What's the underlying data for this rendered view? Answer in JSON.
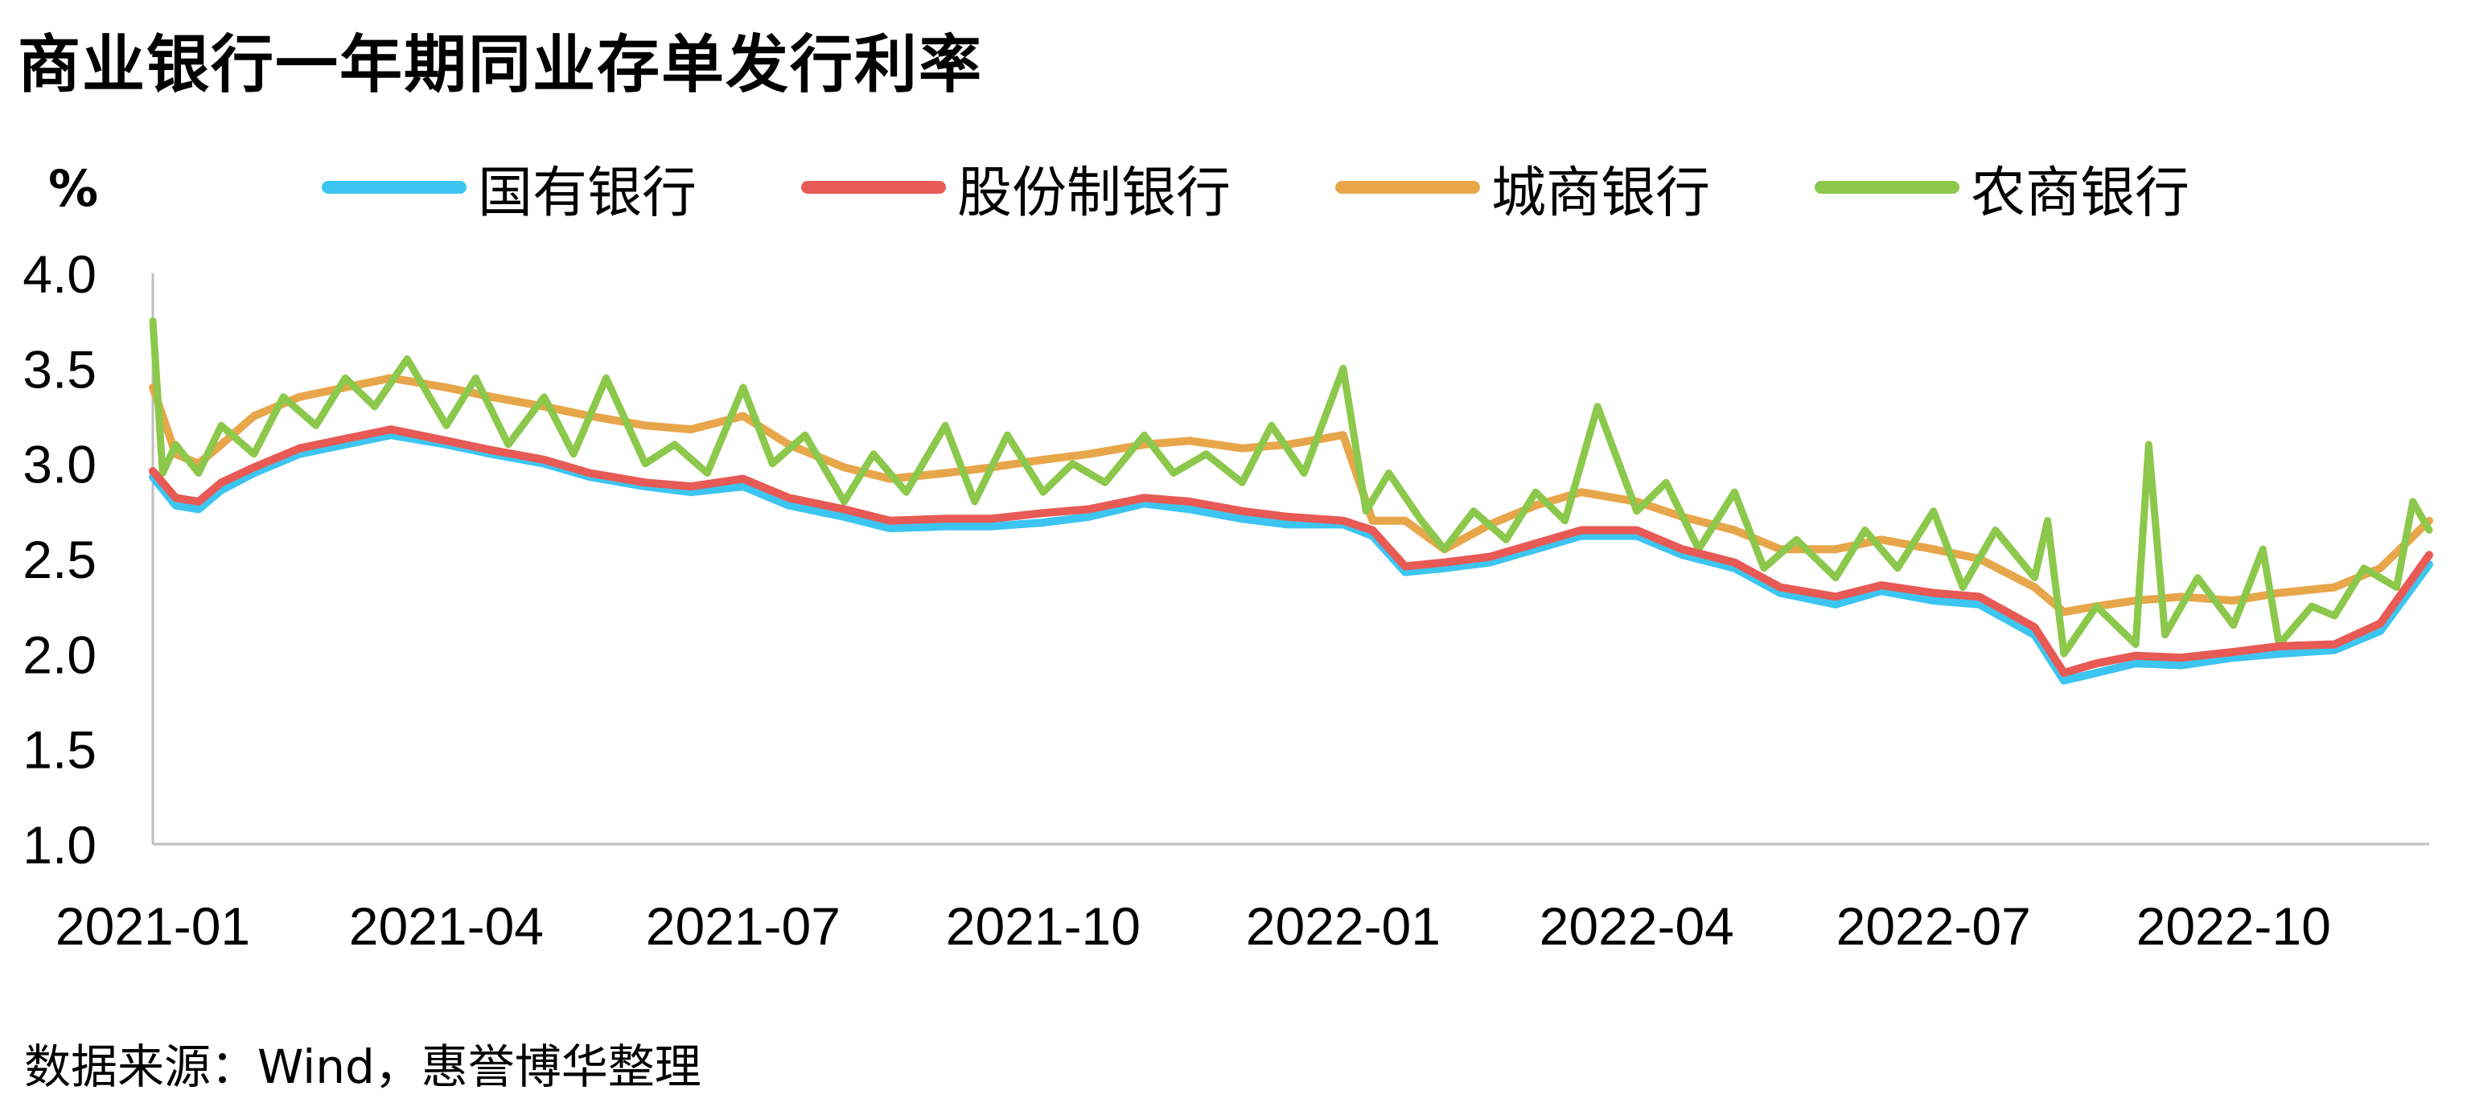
{
  "chart_data": {
    "type": "line",
    "title": "商业银行一年期同业存单发行利率",
    "unit_label": "%",
    "source": "数据来源：Wind，惠誉博华整理",
    "y_ticks": [
      "4.0",
      "3.5",
      "3.0",
      "2.5",
      "2.0",
      "1.5",
      "1.0"
    ],
    "x_ticks": [
      "2021-01",
      "2021-04",
      "2021-07",
      "2021-10",
      "2022-01",
      "2022-04",
      "2022-07",
      "2022-10"
    ],
    "ylim": [
      1.0,
      4.0
    ],
    "xlim": [
      "2021-01-01",
      "2022-11-30"
    ],
    "grid": false,
    "legend_position": "top",
    "series": [
      {
        "name": "国有银行",
        "color": "#3CC5F0",
        "values": [
          [
            "2021-01-01",
            2.93
          ],
          [
            "2021-01-08",
            2.78
          ],
          [
            "2021-01-15",
            2.76
          ],
          [
            "2021-01-22",
            2.86
          ],
          [
            "2021-02-01",
            2.95
          ],
          [
            "2021-02-15",
            3.05
          ],
          [
            "2021-03-01",
            3.1
          ],
          [
            "2021-03-15",
            3.15
          ],
          [
            "2021-04-01",
            3.1
          ],
          [
            "2021-04-15",
            3.05
          ],
          [
            "2021-05-01",
            3.0
          ],
          [
            "2021-05-15",
            2.93
          ],
          [
            "2021-06-01",
            2.88
          ],
          [
            "2021-06-15",
            2.85
          ],
          [
            "2021-07-01",
            2.88
          ],
          [
            "2021-07-15",
            2.78
          ],
          [
            "2021-08-01",
            2.72
          ],
          [
            "2021-08-15",
            2.66
          ],
          [
            "2021-09-01",
            2.67
          ],
          [
            "2021-09-15",
            2.67
          ],
          [
            "2021-10-01",
            2.69
          ],
          [
            "2021-10-15",
            2.72
          ],
          [
            "2021-11-01",
            2.79
          ],
          [
            "2021-11-15",
            2.76
          ],
          [
            "2021-12-01",
            2.71
          ],
          [
            "2021-12-15",
            2.68
          ],
          [
            "2022-01-01",
            2.68
          ],
          [
            "2022-01-10",
            2.62
          ],
          [
            "2022-01-20",
            2.43
          ],
          [
            "2022-02-01",
            2.45
          ],
          [
            "2022-02-15",
            2.48
          ],
          [
            "2022-03-01",
            2.55
          ],
          [
            "2022-03-15",
            2.62
          ],
          [
            "2022-04-01",
            2.62
          ],
          [
            "2022-04-15",
            2.52
          ],
          [
            "2022-05-01",
            2.45
          ],
          [
            "2022-05-15",
            2.32
          ],
          [
            "2022-06-01",
            2.26
          ],
          [
            "2022-06-15",
            2.33
          ],
          [
            "2022-07-01",
            2.28
          ],
          [
            "2022-07-15",
            2.26
          ],
          [
            "2022-08-01",
            2.1
          ],
          [
            "2022-08-10",
            1.86
          ],
          [
            "2022-08-20",
            1.9
          ],
          [
            "2022-09-01",
            1.95
          ],
          [
            "2022-09-15",
            1.94
          ],
          [
            "2022-10-01",
            1.98
          ],
          [
            "2022-10-15",
            2.0
          ],
          [
            "2022-11-01",
            2.02
          ],
          [
            "2022-11-15",
            2.12
          ],
          [
            "2022-11-30",
            2.47
          ]
        ]
      },
      {
        "name": "股份制银行",
        "color": "#E85A55",
        "values": [
          [
            "2021-01-01",
            2.96
          ],
          [
            "2021-01-08",
            2.82
          ],
          [
            "2021-01-15",
            2.8
          ],
          [
            "2021-01-22",
            2.9
          ],
          [
            "2021-02-01",
            2.98
          ],
          [
            "2021-02-15",
            3.08
          ],
          [
            "2021-03-01",
            3.13
          ],
          [
            "2021-03-15",
            3.18
          ],
          [
            "2021-04-01",
            3.12
          ],
          [
            "2021-04-15",
            3.07
          ],
          [
            "2021-05-01",
            3.02
          ],
          [
            "2021-05-15",
            2.95
          ],
          [
            "2021-06-01",
            2.9
          ],
          [
            "2021-06-15",
            2.88
          ],
          [
            "2021-07-01",
            2.92
          ],
          [
            "2021-07-15",
            2.82
          ],
          [
            "2021-08-01",
            2.76
          ],
          [
            "2021-08-15",
            2.7
          ],
          [
            "2021-09-01",
            2.71
          ],
          [
            "2021-09-15",
            2.71
          ],
          [
            "2021-10-01",
            2.74
          ],
          [
            "2021-10-15",
            2.76
          ],
          [
            "2021-11-01",
            2.82
          ],
          [
            "2021-11-15",
            2.8
          ],
          [
            "2021-12-01",
            2.75
          ],
          [
            "2021-12-15",
            2.72
          ],
          [
            "2022-01-01",
            2.7
          ],
          [
            "2022-01-10",
            2.65
          ],
          [
            "2022-01-20",
            2.46
          ],
          [
            "2022-02-01",
            2.48
          ],
          [
            "2022-02-15",
            2.51
          ],
          [
            "2022-03-01",
            2.58
          ],
          [
            "2022-03-15",
            2.65
          ],
          [
            "2022-04-01",
            2.65
          ],
          [
            "2022-04-15",
            2.55
          ],
          [
            "2022-05-01",
            2.48
          ],
          [
            "2022-05-15",
            2.35
          ],
          [
            "2022-06-01",
            2.3
          ],
          [
            "2022-06-15",
            2.36
          ],
          [
            "2022-07-01",
            2.32
          ],
          [
            "2022-07-15",
            2.3
          ],
          [
            "2022-08-01",
            2.14
          ],
          [
            "2022-08-10",
            1.9
          ],
          [
            "2022-08-20",
            1.95
          ],
          [
            "2022-09-01",
            1.99
          ],
          [
            "2022-09-15",
            1.98
          ],
          [
            "2022-10-01",
            2.01
          ],
          [
            "2022-10-15",
            2.04
          ],
          [
            "2022-11-01",
            2.05
          ],
          [
            "2022-11-15",
            2.16
          ],
          [
            "2022-11-30",
            2.52
          ]
        ]
      },
      {
        "name": "城商银行",
        "color": "#E8A64A",
        "values": [
          [
            "2021-01-01",
            3.4
          ],
          [
            "2021-01-08",
            3.05
          ],
          [
            "2021-01-15",
            3.0
          ],
          [
            "2021-01-22",
            3.1
          ],
          [
            "2021-02-01",
            3.25
          ],
          [
            "2021-02-15",
            3.35
          ],
          [
            "2021-03-01",
            3.4
          ],
          [
            "2021-03-15",
            3.45
          ],
          [
            "2021-04-01",
            3.4
          ],
          [
            "2021-04-15",
            3.35
          ],
          [
            "2021-05-01",
            3.3
          ],
          [
            "2021-05-15",
            3.25
          ],
          [
            "2021-06-01",
            3.2
          ],
          [
            "2021-06-15",
            3.18
          ],
          [
            "2021-07-01",
            3.25
          ],
          [
            "2021-07-15",
            3.1
          ],
          [
            "2021-08-01",
            2.98
          ],
          [
            "2021-08-15",
            2.92
          ],
          [
            "2021-09-01",
            2.95
          ],
          [
            "2021-09-15",
            2.98
          ],
          [
            "2021-10-01",
            3.02
          ],
          [
            "2021-10-15",
            3.05
          ],
          [
            "2021-11-01",
            3.1
          ],
          [
            "2021-11-15",
            3.12
          ],
          [
            "2021-12-01",
            3.08
          ],
          [
            "2021-12-15",
            3.1
          ],
          [
            "2022-01-01",
            3.15
          ],
          [
            "2022-01-10",
            2.7
          ],
          [
            "2022-01-20",
            2.7
          ],
          [
            "2022-02-01",
            2.55
          ],
          [
            "2022-02-15",
            2.68
          ],
          [
            "2022-03-01",
            2.78
          ],
          [
            "2022-03-15",
            2.85
          ],
          [
            "2022-04-01",
            2.8
          ],
          [
            "2022-04-15",
            2.72
          ],
          [
            "2022-05-01",
            2.65
          ],
          [
            "2022-05-15",
            2.55
          ],
          [
            "2022-06-01",
            2.55
          ],
          [
            "2022-06-15",
            2.6
          ],
          [
            "2022-07-01",
            2.55
          ],
          [
            "2022-07-15",
            2.5
          ],
          [
            "2022-08-01",
            2.35
          ],
          [
            "2022-08-10",
            2.22
          ],
          [
            "2022-08-20",
            2.25
          ],
          [
            "2022-09-01",
            2.28
          ],
          [
            "2022-09-15",
            2.3
          ],
          [
            "2022-10-01",
            2.28
          ],
          [
            "2022-10-15",
            2.32
          ],
          [
            "2022-11-01",
            2.35
          ],
          [
            "2022-11-15",
            2.45
          ],
          [
            "2022-11-30",
            2.7
          ]
        ]
      },
      {
        "name": "农商银行",
        "color": "#8CC84B",
        "values": [
          [
            "2021-01-01",
            3.75
          ],
          [
            "2021-01-04",
            2.95
          ],
          [
            "2021-01-08",
            3.1
          ],
          [
            "2021-01-15",
            2.95
          ],
          [
            "2021-01-22",
            3.2
          ],
          [
            "2021-02-01",
            3.05
          ],
          [
            "2021-02-10",
            3.35
          ],
          [
            "2021-02-20",
            3.2
          ],
          [
            "2021-03-01",
            3.45
          ],
          [
            "2021-03-10",
            3.3
          ],
          [
            "2021-03-20",
            3.55
          ],
          [
            "2021-04-01",
            3.2
          ],
          [
            "2021-04-10",
            3.45
          ],
          [
            "2021-04-20",
            3.1
          ],
          [
            "2021-05-01",
            3.35
          ],
          [
            "2021-05-10",
            3.05
          ],
          [
            "2021-05-20",
            3.45
          ],
          [
            "2021-06-01",
            3.0
          ],
          [
            "2021-06-10",
            3.1
          ],
          [
            "2021-06-20",
            2.95
          ],
          [
            "2021-07-01",
            3.4
          ],
          [
            "2021-07-10",
            3.0
          ],
          [
            "2021-07-20",
            3.15
          ],
          [
            "2021-08-01",
            2.8
          ],
          [
            "2021-08-10",
            3.05
          ],
          [
            "2021-08-20",
            2.85
          ],
          [
            "2021-09-01",
            3.2
          ],
          [
            "2021-09-10",
            2.8
          ],
          [
            "2021-09-20",
            3.15
          ],
          [
            "2021-10-01",
            2.85
          ],
          [
            "2021-10-10",
            3.0
          ],
          [
            "2021-10-20",
            2.9
          ],
          [
            "2021-11-01",
            3.15
          ],
          [
            "2021-11-10",
            2.95
          ],
          [
            "2021-11-20",
            3.05
          ],
          [
            "2021-12-01",
            2.9
          ],
          [
            "2021-12-10",
            3.2
          ],
          [
            "2021-12-20",
            2.95
          ],
          [
            "2022-01-01",
            3.5
          ],
          [
            "2022-01-08",
            2.75
          ],
          [
            "2022-01-15",
            2.95
          ],
          [
            "2022-01-25",
            2.7
          ],
          [
            "2022-02-01",
            2.55
          ],
          [
            "2022-02-10",
            2.75
          ],
          [
            "2022-02-20",
            2.6
          ],
          [
            "2022-03-01",
            2.85
          ],
          [
            "2022-03-10",
            2.7
          ],
          [
            "2022-03-20",
            3.3
          ],
          [
            "2022-04-01",
            2.75
          ],
          [
            "2022-04-10",
            2.9
          ],
          [
            "2022-04-20",
            2.55
          ],
          [
            "2022-05-01",
            2.85
          ],
          [
            "2022-05-10",
            2.45
          ],
          [
            "2022-05-20",
            2.6
          ],
          [
            "2022-06-01",
            2.4
          ],
          [
            "2022-06-10",
            2.65
          ],
          [
            "2022-06-20",
            2.45
          ],
          [
            "2022-07-01",
            2.75
          ],
          [
            "2022-07-10",
            2.35
          ],
          [
            "2022-07-20",
            2.65
          ],
          [
            "2022-08-01",
            2.4
          ],
          [
            "2022-08-05",
            2.7
          ],
          [
            "2022-08-10",
            2.0
          ],
          [
            "2022-08-20",
            2.25
          ],
          [
            "2022-09-01",
            2.05
          ],
          [
            "2022-09-05",
            3.1
          ],
          [
            "2022-09-10",
            2.1
          ],
          [
            "2022-09-20",
            2.4
          ],
          [
            "2022-10-01",
            2.15
          ],
          [
            "2022-10-10",
            2.55
          ],
          [
            "2022-10-15",
            2.05
          ],
          [
            "2022-10-25",
            2.25
          ],
          [
            "2022-11-01",
            2.2
          ],
          [
            "2022-11-10",
            2.45
          ],
          [
            "2022-11-20",
            2.35
          ],
          [
            "2022-11-25",
            2.8
          ],
          [
            "2022-11-30",
            2.65
          ]
        ]
      }
    ]
  }
}
